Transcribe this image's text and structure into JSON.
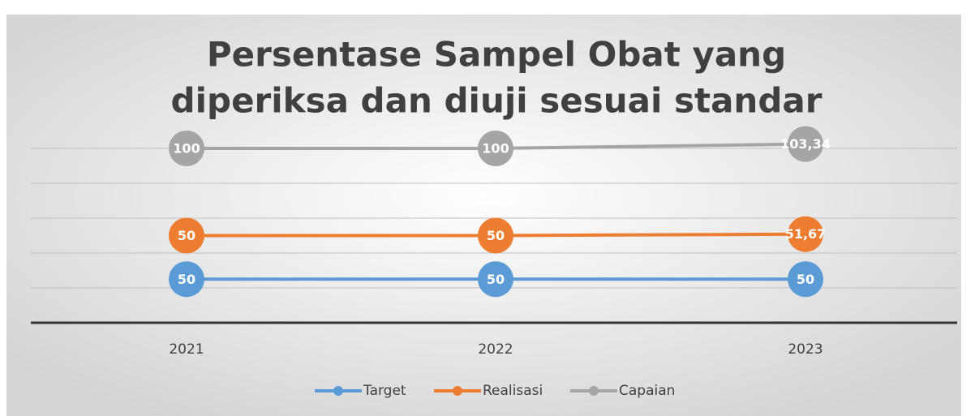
{
  "chart_data": {
    "type": "line",
    "stacked": true,
    "title": [
      "Persentase Sampel Obat yang",
      "diperiksa dan diuji sesuai standar"
    ],
    "categories": [
      "2021",
      "2022",
      "2023"
    ],
    "series": [
      {
        "name": "Target",
        "color": "#5b9bd5",
        "values": [
          50,
          50,
          50
        ]
      },
      {
        "name": "Realisasi",
        "color": "#ed7d31",
        "values": [
          50,
          50,
          51.67
        ],
        "value_labels": [
          "50",
          "50",
          "51,67"
        ]
      },
      {
        "name": "Capaian",
        "color": "#a5a5a5",
        "values": [
          100,
          100,
          103.34
        ],
        "value_labels": [
          "100",
          "100",
          "103,34"
        ]
      }
    ],
    "ylim": [
      0,
      200
    ],
    "yticks": [
      0,
      40,
      80,
      120,
      160,
      200
    ],
    "grid": true,
    "legend": "bottom"
  }
}
